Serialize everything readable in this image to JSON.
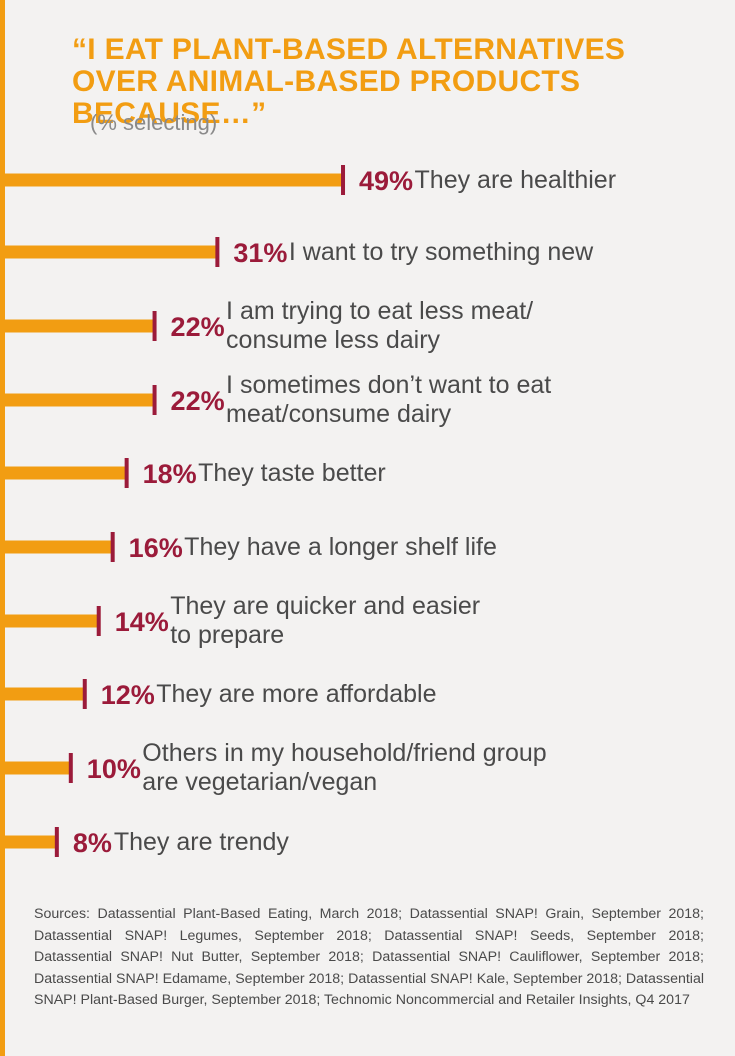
{
  "title": "“I EAT PLANT-BASED ALTERNATIVES OVER ANIMAL-BASED PRODUCTS BECAUSE…”",
  "subtitle": "(% selecting)",
  "colors": {
    "bar": "#f29d12",
    "value": "#9b1b3a",
    "label": "#4a4a4a",
    "background": "#f3f2f1"
  },
  "chart_data": {
    "type": "bar",
    "orientation": "horizontal",
    "unit": "%",
    "categories": [
      "They are healthier",
      "I want to try something new",
      "I am trying to eat less meat/ consume less dairy",
      "I sometimes don’t want to eat meat/consume dairy",
      "They taste better",
      "They have a longer shelf life",
      "They are quicker and easier to prepare",
      "They are more affordable",
      "Others in my household/friend group are vegetarian/vegan",
      "They are trendy"
    ],
    "label_lines": [
      [
        "They are healthier"
      ],
      [
        "I want to try something new"
      ],
      [
        "I am trying to eat less meat/",
        "consume less dairy"
      ],
      [
        "I sometimes don’t want to eat",
        "meat/consume dairy"
      ],
      [
        "They taste better"
      ],
      [
        "They have a longer shelf life"
      ],
      [
        "They are quicker and easier",
        "to prepare"
      ],
      [
        "They are more affordable"
      ],
      [
        "Others in my household/friend group",
        "are vegetarian/vegan"
      ],
      [
        "They are trendy"
      ]
    ],
    "values": [
      49,
      31,
      22,
      22,
      18,
      16,
      14,
      12,
      10,
      8
    ],
    "value_labels": [
      "49%",
      "31%",
      "22%",
      "22%",
      "18%",
      "16%",
      "14%",
      "12%",
      "10%",
      "8%"
    ]
  },
  "sources": "Sources: Datassential Plant-Based Eating, March 2018; Datassential SNAP! Grain, September 2018; Datassential SNAP! Legumes, September 2018; Datassential SNAP! Seeds, September 2018; Datassential SNAP! Nut Butter, September 2018; Datassential SNAP! Cauliflower, September 2018; Datassential SNAP! Edamame, September 2018; Datassential SNAP! Kale, September 2018; Datassential SNAP! Plant-Based Burger, September 2018; Technomic Noncommercial and Retailer Insights, Q4 2017"
}
